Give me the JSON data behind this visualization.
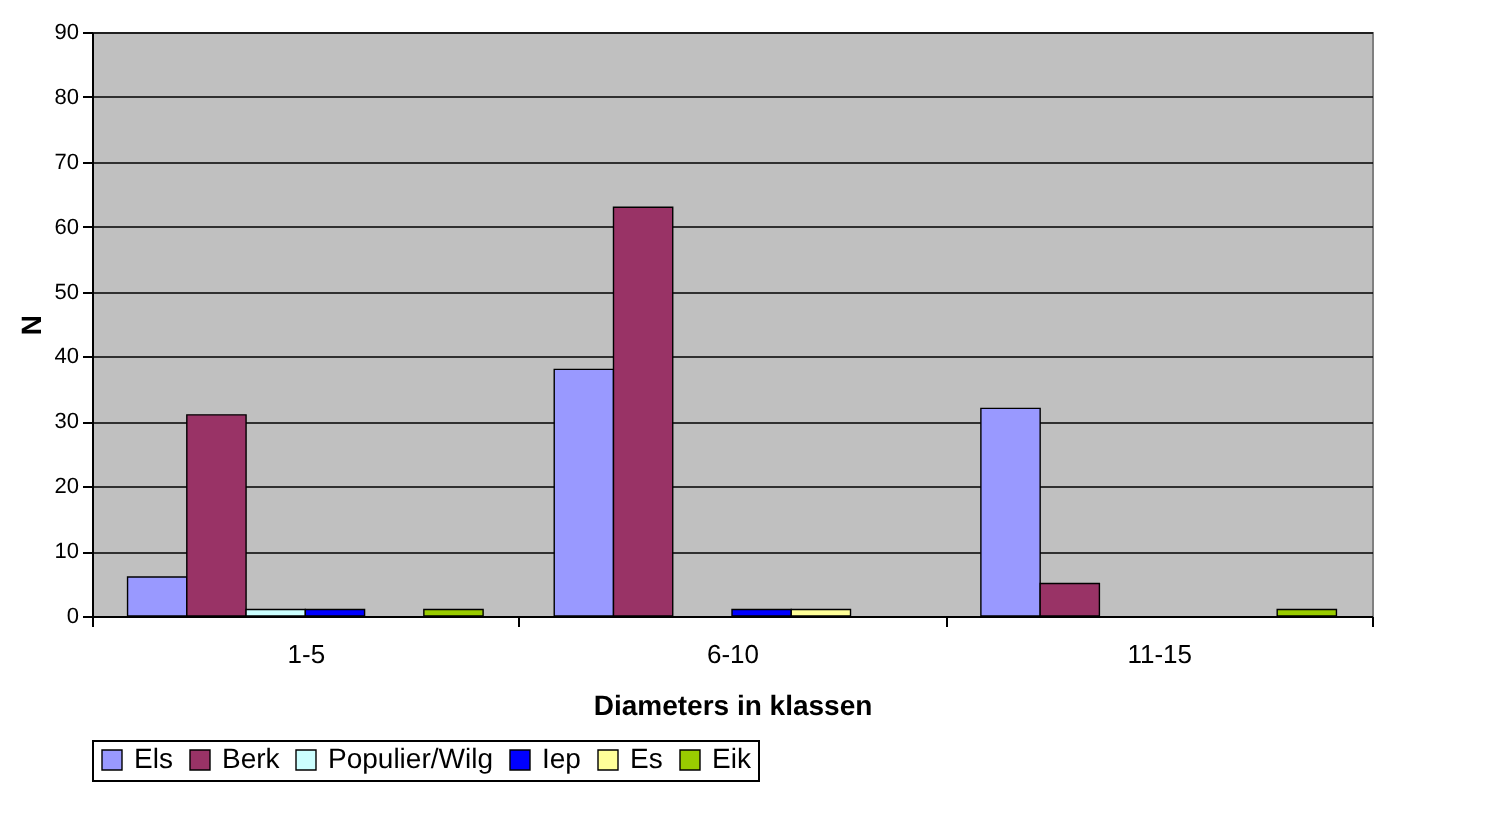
{
  "chart_data": {
    "type": "bar",
    "xlabel": "Diameters in klassen",
    "ylabel": "N",
    "categories": [
      "1-5",
      "6-10",
      "11-15"
    ],
    "series": [
      {
        "name": "Els",
        "color": "#9999ff",
        "values": [
          6,
          38,
          32
        ]
      },
      {
        "name": "Berk",
        "color": "#993366",
        "values": [
          31,
          63,
          5
        ]
      },
      {
        "name": "Populier/Wilg",
        "color": "#ccffff",
        "values": [
          1,
          0,
          0
        ]
      },
      {
        "name": "Iep",
        "color": "#0000ff",
        "values": [
          1,
          1,
          0
        ]
      },
      {
        "name": "Es",
        "color": "#ffff99",
        "values": [
          0,
          1,
          0
        ]
      },
      {
        "name": "Eik",
        "color": "#99cc00",
        "values": [
          1,
          0,
          1
        ]
      }
    ],
    "ylim": [
      0,
      90
    ],
    "yticks": [
      0,
      10,
      20,
      30,
      40,
      50,
      60,
      70,
      80,
      90
    ],
    "grid": "y",
    "legend": "bottom"
  }
}
